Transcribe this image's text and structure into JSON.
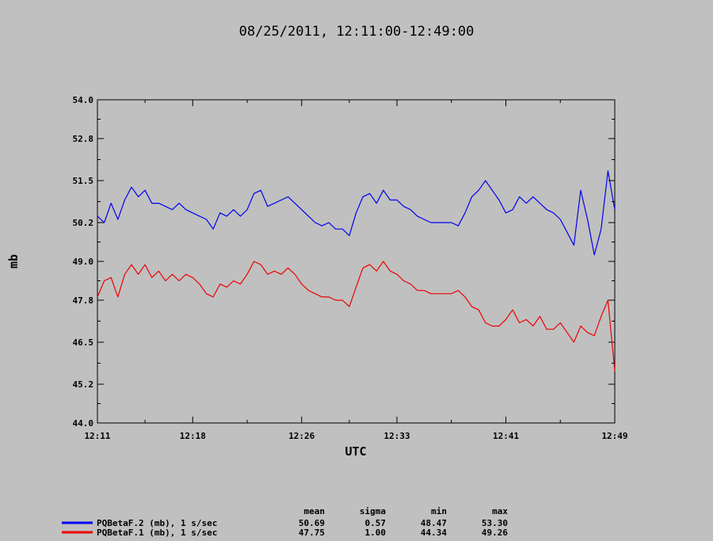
{
  "chart_data": {
    "type": "line",
    "title": "08/25/2011, 12:11:00-12:49:00",
    "xlabel": "UTC",
    "ylabel": "mb",
    "ylim": [
      44.0,
      54.0
    ],
    "yticks": [
      "44.0",
      "45.2",
      "46.5",
      "47.8",
      "49.0",
      "50.2",
      "51.5",
      "52.8",
      "54.0"
    ],
    "xlim": [
      "12:11",
      "12:49"
    ],
    "xticks": [
      "12:11",
      "12:18",
      "12:26",
      "12:33",
      "12:41",
      "12:49"
    ],
    "series": [
      {
        "name": "PQBetaF.2 (mb), 1 s/sec",
        "color": "#0000ee",
        "points": [
          [
            "12:11",
            50.4
          ],
          [
            "12:11:30",
            50.2
          ],
          [
            "12:12",
            50.8
          ],
          [
            "12:12:30",
            50.3
          ],
          [
            "12:13",
            50.9
          ],
          [
            "12:13:30",
            51.3
          ],
          [
            "12:14",
            51.0
          ],
          [
            "12:14:30",
            51.2
          ],
          [
            "12:15",
            50.8
          ],
          [
            "12:15:30",
            50.8
          ],
          [
            "12:16",
            50.7
          ],
          [
            "12:16:30",
            50.6
          ],
          [
            "12:17",
            50.8
          ],
          [
            "12:17:30",
            50.6
          ],
          [
            "12:18",
            50.5
          ],
          [
            "12:18:30",
            50.4
          ],
          [
            "12:19",
            50.3
          ],
          [
            "12:19:30",
            50.0
          ],
          [
            "12:20",
            50.5
          ],
          [
            "12:20:30",
            50.4
          ],
          [
            "12:21",
            50.6
          ],
          [
            "12:21:30",
            50.4
          ],
          [
            "12:22",
            50.6
          ],
          [
            "12:22:30",
            51.1
          ],
          [
            "12:23",
            51.2
          ],
          [
            "12:23:30",
            50.7
          ],
          [
            "12:24",
            50.8
          ],
          [
            "12:24:30",
            50.9
          ],
          [
            "12:25",
            51.0
          ],
          [
            "12:25:30",
            50.8
          ],
          [
            "12:26",
            50.6
          ],
          [
            "12:26:30",
            50.4
          ],
          [
            "12:27",
            50.2
          ],
          [
            "12:27:30",
            50.1
          ],
          [
            "12:28",
            50.2
          ],
          [
            "12:28:30",
            50.0
          ],
          [
            "12:29",
            50.0
          ],
          [
            "12:29:30",
            49.8
          ],
          [
            "12:30",
            50.5
          ],
          [
            "12:30:30",
            51.0
          ],
          [
            "12:31",
            51.1
          ],
          [
            "12:31:30",
            50.8
          ],
          [
            "12:32",
            51.2
          ],
          [
            "12:32:30",
            50.9
          ],
          [
            "12:33",
            50.9
          ],
          [
            "12:33:30",
            50.7
          ],
          [
            "12:34",
            50.6
          ],
          [
            "12:34:30",
            50.4
          ],
          [
            "12:35",
            50.3
          ],
          [
            "12:35:30",
            50.2
          ],
          [
            "12:36",
            50.2
          ],
          [
            "12:36:30",
            50.2
          ],
          [
            "12:37",
            50.2
          ],
          [
            "12:37:30",
            50.1
          ],
          [
            "12:38",
            50.5
          ],
          [
            "12:38:30",
            51.0
          ],
          [
            "12:39",
            51.2
          ],
          [
            "12:39:30",
            51.5
          ],
          [
            "12:40",
            51.2
          ],
          [
            "12:40:30",
            50.9
          ],
          [
            "12:41",
            50.5
          ],
          [
            "12:41:30",
            50.6
          ],
          [
            "12:42",
            51.0
          ],
          [
            "12:42:30",
            50.8
          ],
          [
            "12:43",
            51.0
          ],
          [
            "12:43:30",
            50.8
          ],
          [
            "12:44",
            50.6
          ],
          [
            "12:44:30",
            50.5
          ],
          [
            "12:45",
            50.3
          ],
          [
            "12:45:30",
            49.9
          ],
          [
            "12:46",
            49.5
          ],
          [
            "12:46:30",
            51.2
          ],
          [
            "12:47",
            50.3
          ],
          [
            "12:47:30",
            49.2
          ],
          [
            "12:48",
            50.0
          ],
          [
            "12:48:30",
            51.8
          ],
          [
            "12:49",
            50.6
          ]
        ]
      },
      {
        "name": "PQBetaF.1 (mb), 1 s/sec",
        "color": "#ee0000",
        "points": [
          [
            "12:11",
            47.9
          ],
          [
            "12:11:30",
            48.4
          ],
          [
            "12:12",
            48.5
          ],
          [
            "12:12:30",
            47.9
          ],
          [
            "12:13",
            48.6
          ],
          [
            "12:13:30",
            48.9
          ],
          [
            "12:14",
            48.6
          ],
          [
            "12:14:30",
            48.9
          ],
          [
            "12:15",
            48.5
          ],
          [
            "12:15:30",
            48.7
          ],
          [
            "12:16",
            48.4
          ],
          [
            "12:16:30",
            48.6
          ],
          [
            "12:17",
            48.4
          ],
          [
            "12:17:30",
            48.6
          ],
          [
            "12:18",
            48.5
          ],
          [
            "12:18:30",
            48.3
          ],
          [
            "12:19",
            48.0
          ],
          [
            "12:19:30",
            47.9
          ],
          [
            "12:20",
            48.3
          ],
          [
            "12:20:30",
            48.2
          ],
          [
            "12:21",
            48.4
          ],
          [
            "12:21:30",
            48.3
          ],
          [
            "12:22",
            48.6
          ],
          [
            "12:22:30",
            49.0
          ],
          [
            "12:23",
            48.9
          ],
          [
            "12:23:30",
            48.6
          ],
          [
            "12:24",
            48.7
          ],
          [
            "12:24:30",
            48.6
          ],
          [
            "12:25",
            48.8
          ],
          [
            "12:25:30",
            48.6
          ],
          [
            "12:26",
            48.3
          ],
          [
            "12:26:30",
            48.1
          ],
          [
            "12:27",
            48.0
          ],
          [
            "12:27:30",
            47.9
          ],
          [
            "12:28",
            47.9
          ],
          [
            "12:28:30",
            47.8
          ],
          [
            "12:29",
            47.8
          ],
          [
            "12:29:30",
            47.6
          ],
          [
            "12:30",
            48.2
          ],
          [
            "12:30:30",
            48.8
          ],
          [
            "12:31",
            48.9
          ],
          [
            "12:31:30",
            48.7
          ],
          [
            "12:32",
            49.0
          ],
          [
            "12:32:30",
            48.7
          ],
          [
            "12:33",
            48.6
          ],
          [
            "12:33:30",
            48.4
          ],
          [
            "12:34",
            48.3
          ],
          [
            "12:34:30",
            48.1
          ],
          [
            "12:35",
            48.1
          ],
          [
            "12:35:30",
            48.0
          ],
          [
            "12:36",
            48.0
          ],
          [
            "12:36:30",
            48.0
          ],
          [
            "12:37",
            48.0
          ],
          [
            "12:37:30",
            48.1
          ],
          [
            "12:38",
            47.9
          ],
          [
            "12:38:30",
            47.6
          ],
          [
            "12:39",
            47.5
          ],
          [
            "12:39:30",
            47.1
          ],
          [
            "12:40",
            47.0
          ],
          [
            "12:40:30",
            47.0
          ],
          [
            "12:41",
            47.2
          ],
          [
            "12:41:30",
            47.5
          ],
          [
            "12:42",
            47.1
          ],
          [
            "12:42:30",
            47.2
          ],
          [
            "12:43",
            47.0
          ],
          [
            "12:43:30",
            47.3
          ],
          [
            "12:44",
            46.9
          ],
          [
            "12:44:30",
            46.9
          ],
          [
            "12:45",
            47.1
          ],
          [
            "12:45:30",
            46.8
          ],
          [
            "12:46",
            46.5
          ],
          [
            "12:46:30",
            47.0
          ],
          [
            "12:47",
            46.8
          ],
          [
            "12:47:30",
            46.7
          ],
          [
            "12:48",
            47.3
          ],
          [
            "12:48:30",
            47.8
          ],
          [
            "12:49",
            45.6
          ]
        ]
      }
    ],
    "legend_position": "bottom-left",
    "stats": {
      "headers": [
        "mean",
        "sigma",
        "min",
        "max"
      ],
      "rows": [
        [
          "50.69",
          "0.57",
          "48.47",
          "53.30"
        ],
        [
          "47.75",
          "1.00",
          "44.34",
          "49.26"
        ]
      ]
    }
  }
}
